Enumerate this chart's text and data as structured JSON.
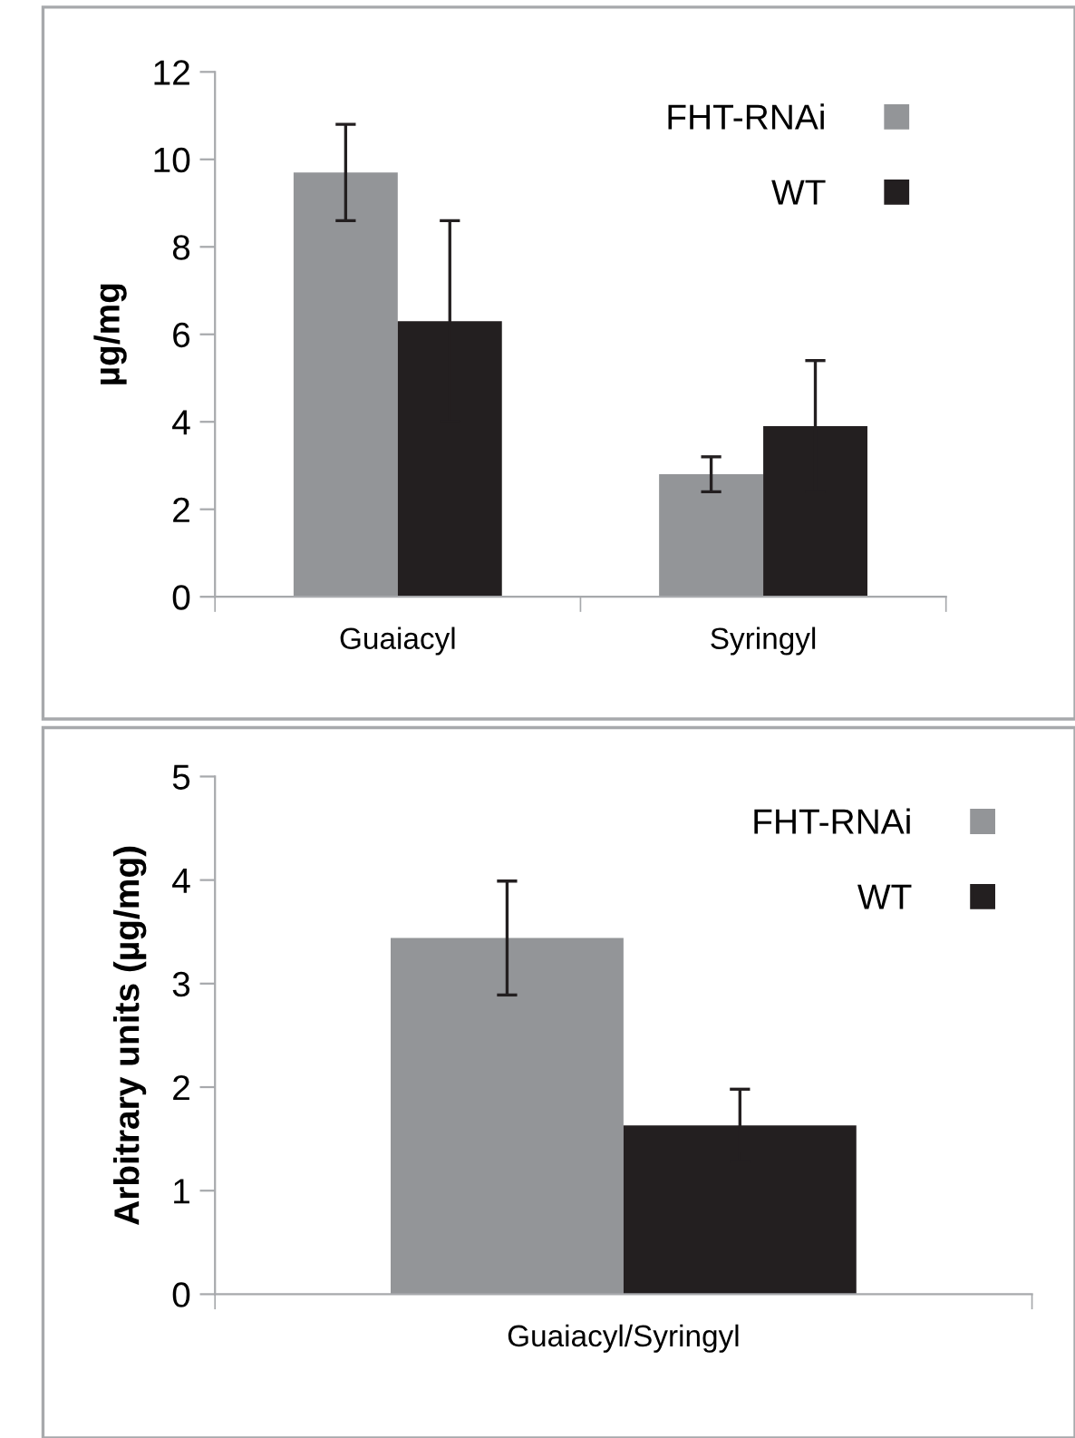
{
  "chart_data": [
    {
      "type": "bar",
      "ylabel": "µg/mg",
      "categories": [
        "Guaiacyl",
        "Syringyl"
      ],
      "ylim": [
        0,
        12
      ],
      "yticks": [
        0,
        2,
        4,
        6,
        8,
        10,
        12
      ],
      "legend": "top right",
      "grid": false,
      "series": [
        {
          "name": "FHT-RNAi",
          "color": "#939598",
          "values": [
            9.7,
            2.8
          ],
          "errors": [
            1.1,
            0.4
          ]
        },
        {
          "name": "WT",
          "color": "#231f20",
          "values": [
            6.3,
            3.9
          ],
          "errors": [
            2.3,
            1.5
          ]
        }
      ]
    },
    {
      "type": "bar",
      "ylabel": "Arbitrary units (µg/mg)",
      "categories": [
        "Guaiacyl/Syringyl"
      ],
      "ylim": [
        0,
        5
      ],
      "yticks": [
        0,
        1,
        2,
        3,
        4,
        5
      ],
      "legend": "top right",
      "grid": false,
      "series": [
        {
          "name": "FHT-RNAi",
          "color": "#939598",
          "values": [
            3.44
          ],
          "errors": [
            0.55
          ]
        },
        {
          "name": "WT",
          "color": "#231f20",
          "values": [
            1.63
          ],
          "errors": [
            0.35
          ]
        }
      ]
    }
  ]
}
